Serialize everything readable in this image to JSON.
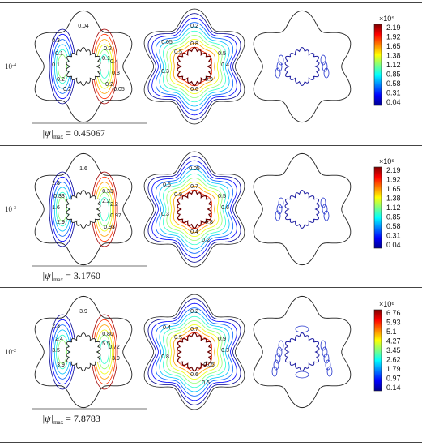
{
  "rows": [
    {
      "ra_base": "10",
      "ra_exp": "-4",
      "psi_max": "0.45067",
      "stream_labels": [
        "0.04",
        "0.3",
        "0.1",
        "0.1",
        "0.2",
        "0.2",
        "0.1",
        "0.4",
        "0.3",
        "0.2",
        "0.05",
        "0.2"
      ],
      "iso_labels": [
        "0.2",
        "0.8",
        "0.5",
        "0.5",
        "0.4",
        "0.3",
        "0.6",
        "0.9",
        "0.05"
      ],
      "colorbar": {
        "exp": "×10⁵",
        "ticks": [
          "2.19",
          "1.92",
          "1.65",
          "1.38",
          "1.12",
          "0.85",
          "0.58",
          "0.31",
          "0.04"
        ]
      }
    },
    {
      "ra_base": "10",
      "ra_exp": "-3",
      "psi_max": "3.1760",
      "stream_labels": [
        "1.6",
        "2.8",
        "0.33",
        "1.6",
        "2.9",
        "0.33",
        "2.2",
        "2.2",
        "0.97",
        "0.93"
      ],
      "iso_labels": [
        "0.05",
        "0.7",
        "0.5",
        "0.9",
        "0.6",
        "0.3",
        "0.4",
        "0.8",
        "0.5",
        "0.2"
      ],
      "colorbar": {
        "exp": "×10⁵",
        "ticks": [
          "2.19",
          "1.92",
          "1.65",
          "1.38",
          "1.12",
          "0.85",
          "0.58",
          "0.31",
          "0.04"
        ]
      }
    },
    {
      "ra_base": "10",
      "ra_exp": "-2",
      "psi_max": "7.8783",
      "stream_labels": [
        "3.9",
        "2.3",
        "2.4",
        "3.5",
        "3.9",
        "0.80",
        "5.5",
        "0.72",
        "3.9"
      ],
      "iso_labels": [
        "0.2",
        "0.7",
        "0.9",
        "0.5",
        "0.3",
        "0.8",
        "0.6",
        "0.05",
        "0.4",
        "0.5"
      ],
      "colorbar": {
        "exp": "×10⁶",
        "ticks": [
          "6.76",
          "5.93",
          "5.1",
          "4.27",
          "3.45",
          "2.62",
          "1.79",
          "0.97",
          "0.14"
        ]
      }
    }
  ],
  "psi_symbol": "|ψ|",
  "psi_subscript": "max",
  "psi_equals": " = "
}
